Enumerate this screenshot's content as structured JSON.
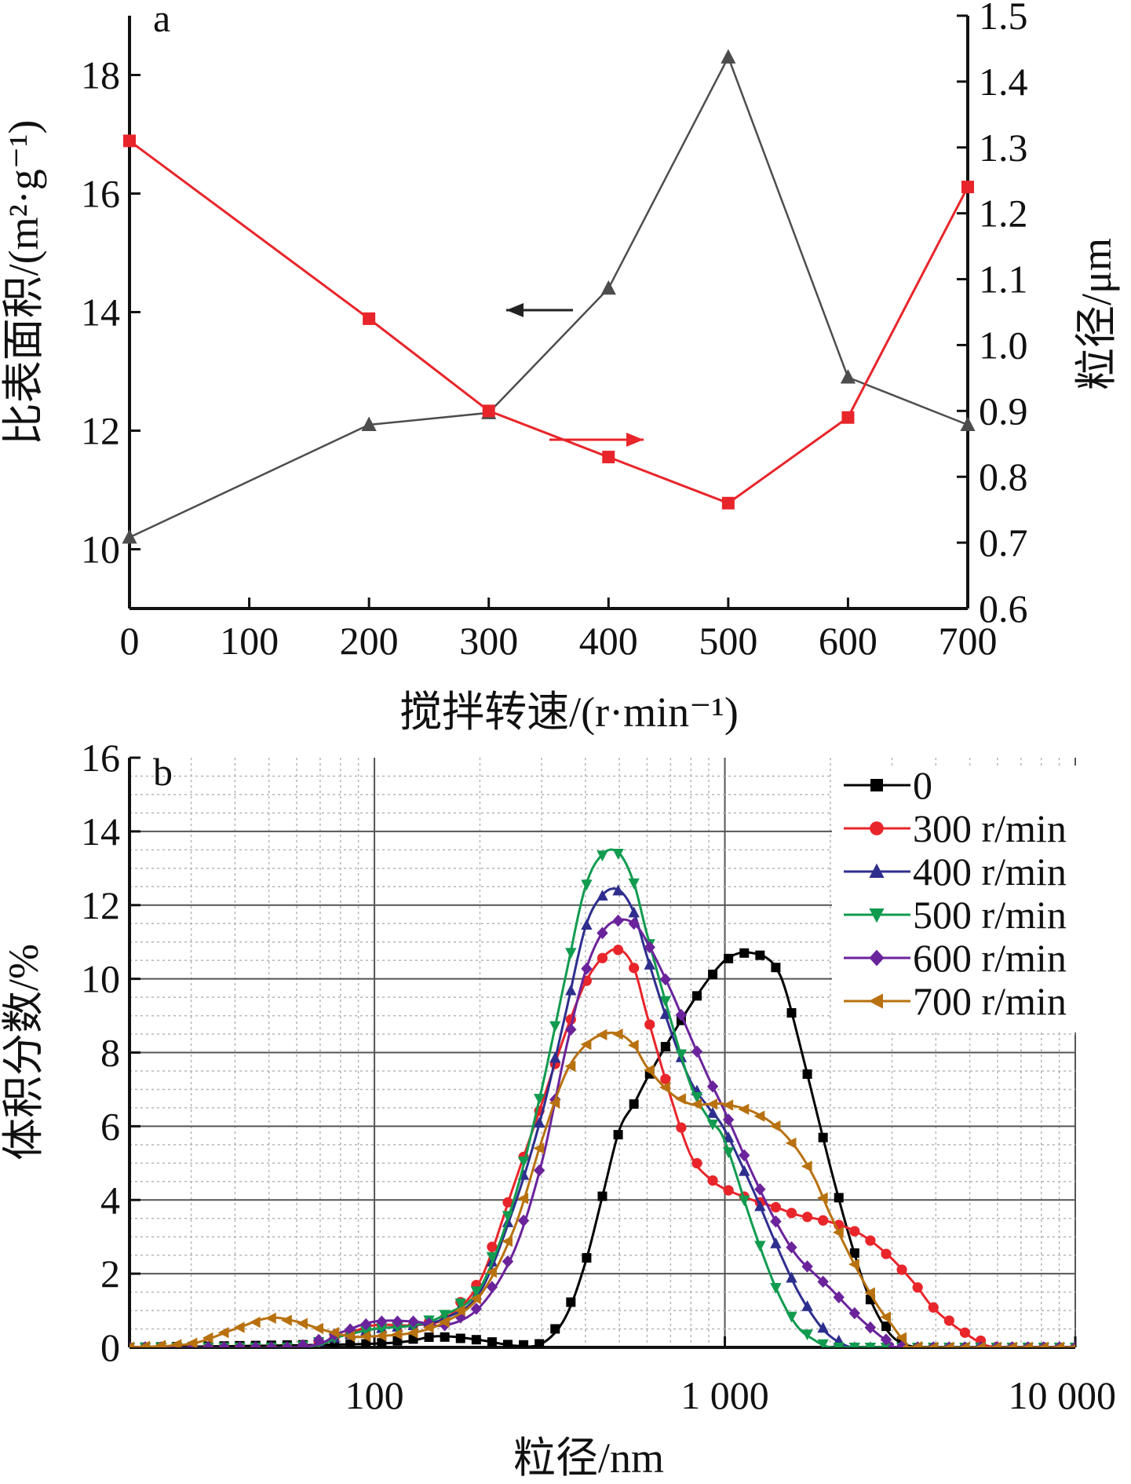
{
  "chart_data": [
    {
      "panel": "a",
      "type": "line",
      "xlabel": "搅拌转速/(r·min⁻¹)",
      "ylabel_left": "比表面积/(m²·g⁻¹)",
      "ylabel_right": "粒径/μm",
      "xlim": [
        0,
        700
      ],
      "ylim_left": [
        9,
        19
      ],
      "ylim_right": [
        0.6,
        1.5
      ],
      "xticks": [
        "0",
        "100",
        "200",
        "300",
        "400",
        "500",
        "600",
        "700"
      ],
      "yticks_left": [
        "10",
        "12",
        "14",
        "16",
        "18"
      ],
      "yticks_right": [
        "0.6",
        "0.7",
        "0.8",
        "0.9",
        "1.0",
        "1.1",
        "1.2",
        "1.3",
        "1.4",
        "1.5"
      ],
      "series": [
        {
          "axis": "left",
          "color": "#4d4d4d",
          "marker": "triangle",
          "x": [
            0,
            200,
            300,
            400,
            500,
            600,
            700
          ],
          "y": [
            10.2,
            12.1,
            12.3,
            14.4,
            18.3,
            12.9,
            12.1
          ]
        },
        {
          "axis": "right",
          "color": "#e8252a",
          "marker": "square",
          "x": [
            0,
            200,
            300,
            400,
            500,
            600,
            700
          ],
          "y": [
            1.31,
            1.04,
            0.9,
            0.83,
            0.76,
            0.89,
            1.24
          ]
        }
      ],
      "arrows": [
        {
          "points_to": "left",
          "color": "#222222"
        },
        {
          "points_to": "right",
          "color": "#e8252a"
        }
      ]
    },
    {
      "panel": "b",
      "type": "line",
      "xlabel": "粒径/nm",
      "ylabel": "体积分数/%",
      "xscale": "log",
      "xlim": [
        20,
        10000
      ],
      "ylim": [
        0,
        16
      ],
      "xticks": [
        "100",
        "1 000",
        "10 000"
      ],
      "yticks": [
        "0",
        "2",
        "4",
        "6",
        "8",
        "10",
        "12",
        "14",
        "16"
      ],
      "grid": true,
      "legend_position": "top-right",
      "series": [
        {
          "name": "0",
          "color": "#000000",
          "marker": "square",
          "x": [
            20,
            100,
            150,
            200,
            250,
            300,
            350,
            400,
            450,
            500,
            550,
            600,
            700,
            800,
            900,
            1000,
            1100,
            1200,
            1300,
            1400,
            1500,
            1700,
            2000,
            2300,
            2600,
            3000,
            3500,
            4000,
            10000
          ],
          "y": [
            0,
            0.1,
            0.3,
            0.2,
            0.05,
            0.1,
            0.8,
            2.3,
            4.2,
            5.9,
            6.6,
            7.3,
            8.4,
            9.3,
            10.0,
            10.5,
            10.7,
            10.7,
            10.6,
            10.3,
            9.6,
            7.6,
            4.9,
            2.8,
            1.3,
            0.3,
            0,
            0,
            0
          ]
        },
        {
          "name": "300 r/min",
          "color": "#e8252a",
          "marker": "circle",
          "x": [
            20,
            60,
            80,
            100,
            130,
            160,
            200,
            250,
            300,
            350,
            400,
            450,
            500,
            550,
            600,
            700,
            800,
            900,
            1000,
            1200,
            1400,
            1600,
            1800,
            2000,
            2300,
            2600,
            3000,
            3500,
            4000,
            5000,
            6000,
            10000
          ],
          "y": [
            0,
            0,
            0.3,
            0.6,
            0.6,
            0.8,
            1.8,
            4.4,
            6.6,
            8.5,
            9.9,
            10.6,
            10.8,
            10.3,
            9.0,
            6.8,
            5.2,
            4.6,
            4.3,
            4.0,
            3.8,
            3.6,
            3.5,
            3.4,
            3.2,
            2.9,
            2.4,
            1.7,
            1.0,
            0.3,
            0,
            0
          ]
        },
        {
          "name": "400 r/min",
          "color": "#2e2e8e",
          "marker": "triangle",
          "x": [
            20,
            60,
            80,
            100,
            130,
            160,
            200,
            250,
            300,
            350,
            400,
            450,
            500,
            550,
            600,
            700,
            800,
            900,
            1000,
            1200,
            1400,
            1600,
            1800,
            2000,
            2300,
            2700,
            10000
          ],
          "y": [
            0,
            0,
            0.3,
            0.5,
            0.6,
            0.8,
            1.5,
            3.8,
            6.3,
            9.0,
            11.4,
            12.3,
            12.4,
            11.8,
            10.6,
            8.6,
            7.2,
            6.5,
            5.9,
            4.3,
            2.8,
            1.6,
            0.8,
            0.3,
            0,
            0,
            0
          ]
        },
        {
          "name": "500 r/min",
          "color": "#119b4f",
          "marker": "triangle-down",
          "x": [
            20,
            60,
            80,
            100,
            130,
            160,
            200,
            250,
            300,
            350,
            400,
            450,
            500,
            550,
            600,
            700,
            800,
            900,
            1000,
            1200,
            1400,
            1600,
            1800,
            2000,
            2300,
            10000
          ],
          "y": [
            0,
            0,
            0.3,
            0.5,
            0.6,
            0.9,
            1.6,
            4.0,
            7.0,
            10.0,
            12.5,
            13.4,
            13.4,
            12.6,
            11.2,
            8.9,
            7.1,
            6.2,
            5.6,
            3.3,
            1.6,
            0.6,
            0.2,
            0,
            0,
            0
          ]
        },
        {
          "name": "600 r/min",
          "color": "#6b239b",
          "marker": "diamond",
          "x": [
            20,
            60,
            80,
            100,
            130,
            160,
            200,
            250,
            300,
            350,
            400,
            450,
            500,
            550,
            600,
            700,
            800,
            900,
            1000,
            1200,
            1400,
            1600,
            1800,
            2000,
            2300,
            2700,
            3000,
            3300,
            10000
          ],
          "y": [
            0,
            0,
            0.4,
            0.7,
            0.7,
            0.6,
            1.1,
            2.6,
            5.0,
            8.0,
            10.2,
            11.3,
            11.6,
            11.5,
            11.0,
            9.7,
            8.4,
            7.3,
            6.4,
            4.7,
            3.4,
            2.5,
            2.0,
            1.6,
            1.0,
            0.4,
            0.1,
            0,
            0
          ]
        },
        {
          "name": "700 r/min",
          "color": "#b8710f",
          "marker": "triangle-left",
          "x": [
            20,
            30,
            40,
            50,
            60,
            70,
            85,
            100,
            130,
            160,
            200,
            250,
            300,
            350,
            400,
            450,
            500,
            550,
            600,
            700,
            800,
            900,
            1000,
            1200,
            1400,
            1600,
            1800,
            2000,
            2300,
            2700,
            3000,
            3300,
            3600,
            10000
          ],
          "y": [
            0,
            0.1,
            0.5,
            0.8,
            0.7,
            0.5,
            0.3,
            0.3,
            0.4,
            0.7,
            1.4,
            3.2,
            5.6,
            7.4,
            8.2,
            8.5,
            8.5,
            8.2,
            7.6,
            6.9,
            6.6,
            6.6,
            6.6,
            6.4,
            6.0,
            5.4,
            4.6,
            3.6,
            2.4,
            1.2,
            0.6,
            0.1,
            0,
            0
          ]
        }
      ]
    }
  ]
}
